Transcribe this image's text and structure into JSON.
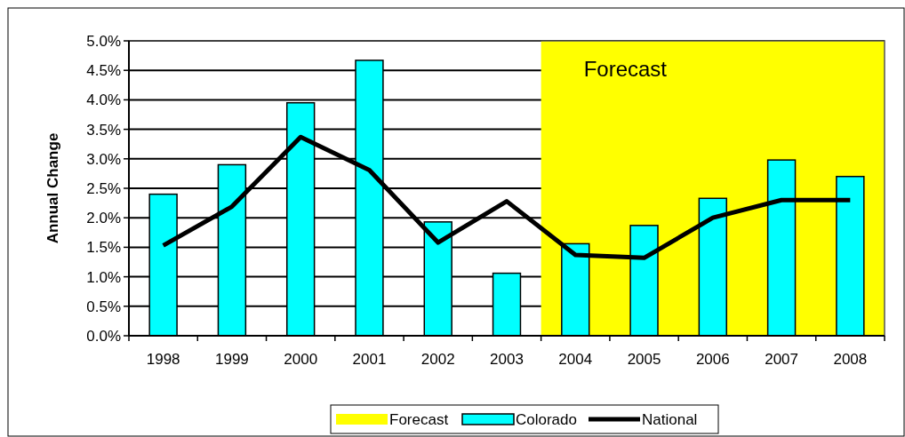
{
  "chart_data": {
    "type": "bar",
    "ylabel": "Annual Change",
    "categories": [
      "1998",
      "1999",
      "2000",
      "2001",
      "2002",
      "2003",
      "2004",
      "2005",
      "2006",
      "2007",
      "2008"
    ],
    "series": [
      {
        "name": "Colorado",
        "color": "#00ffff",
        "values": [
          2.4,
          2.9,
          3.95,
          4.67,
          1.93,
          1.06,
          1.56,
          1.87,
          2.33,
          2.98,
          2.7
        ]
      },
      {
        "name": "National",
        "type": "line",
        "color": "#000000",
        "values": [
          1.53,
          2.19,
          3.37,
          2.81,
          1.58,
          2.28,
          1.37,
          1.32,
          2.0,
          2.3,
          2.3
        ]
      }
    ],
    "bands": [
      {
        "axis": "x",
        "from": "2004",
        "to": "2008",
        "label": "Forecast",
        "color": "#ffff00"
      }
    ],
    "ylim": [
      0,
      5
    ],
    "yticks": [
      {
        "value": 0,
        "label": "0.0%"
      },
      {
        "value": 0.5,
        "label": "0.5%"
      },
      {
        "value": 1,
        "label": "1.0%"
      },
      {
        "value": 1.5,
        "label": "1.5%"
      },
      {
        "value": 2,
        "label": "2.0%"
      },
      {
        "value": 2.5,
        "label": "2.5%"
      },
      {
        "value": 3,
        "label": "3.0%"
      },
      {
        "value": 3.5,
        "label": "3.5%"
      },
      {
        "value": 4,
        "label": "4.0%"
      },
      {
        "value": 4.5,
        "label": "4.5%"
      },
      {
        "value": 5,
        "label": "5.0%"
      }
    ],
    "grid": "y",
    "legend": "bottom",
    "marker": "none",
    "line_style": "solid"
  }
}
